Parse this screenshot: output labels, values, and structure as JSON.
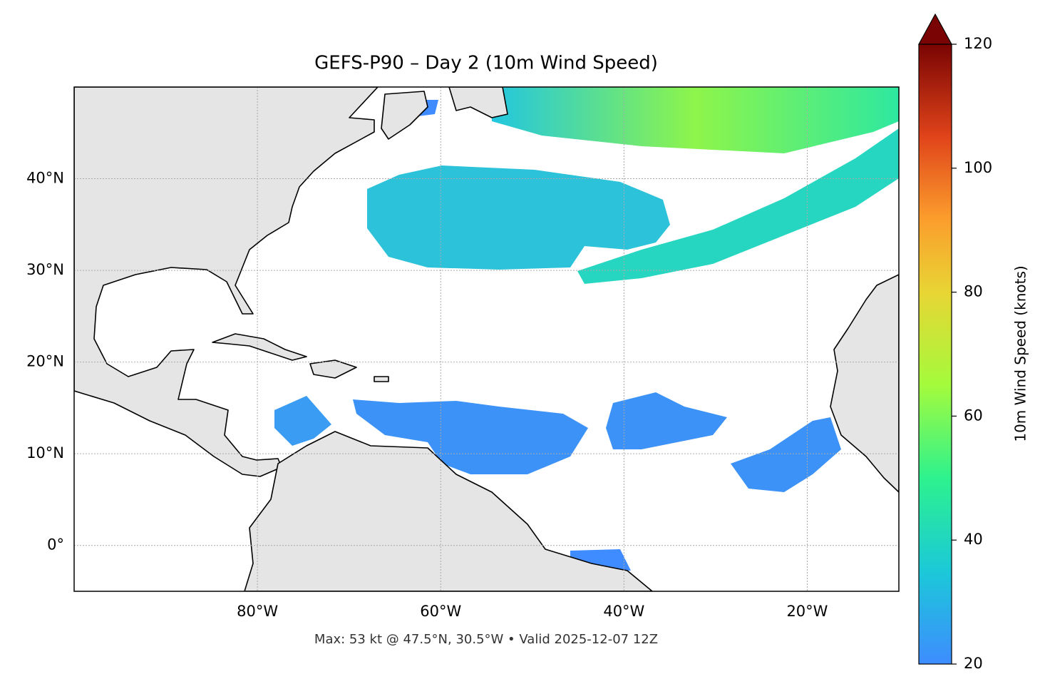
{
  "title": "GEFS-P90 – Day 2 (10m Wind Speed)",
  "map": {
    "lonlim": [
      -100,
      -10
    ],
    "latlim": [
      -5,
      50
    ],
    "lonticks": [
      {
        "value": -80,
        "label": "80°W"
      },
      {
        "value": -60,
        "label": "60°W"
      },
      {
        "value": -40,
        "label": "40°W"
      },
      {
        "value": -20,
        "label": "20°W"
      }
    ],
    "latticks": [
      {
        "value": 0,
        "label": "0°"
      },
      {
        "value": 10,
        "label": "10°N"
      },
      {
        "value": 20,
        "label": "20°N"
      },
      {
        "value": 30,
        "label": "30°N"
      },
      {
        "value": 40,
        "label": "40°N"
      }
    ],
    "grid": true
  },
  "colorbar": {
    "label": "10m Wind Speed (knots)",
    "lim": [
      20,
      120
    ],
    "ticks": [
      20,
      40,
      60,
      80,
      100,
      120
    ],
    "extend": "max"
  },
  "footer": "Max: 53 kt @ 47.5°N, 30.5°W • Valid 2025-12-07 12Z"
}
